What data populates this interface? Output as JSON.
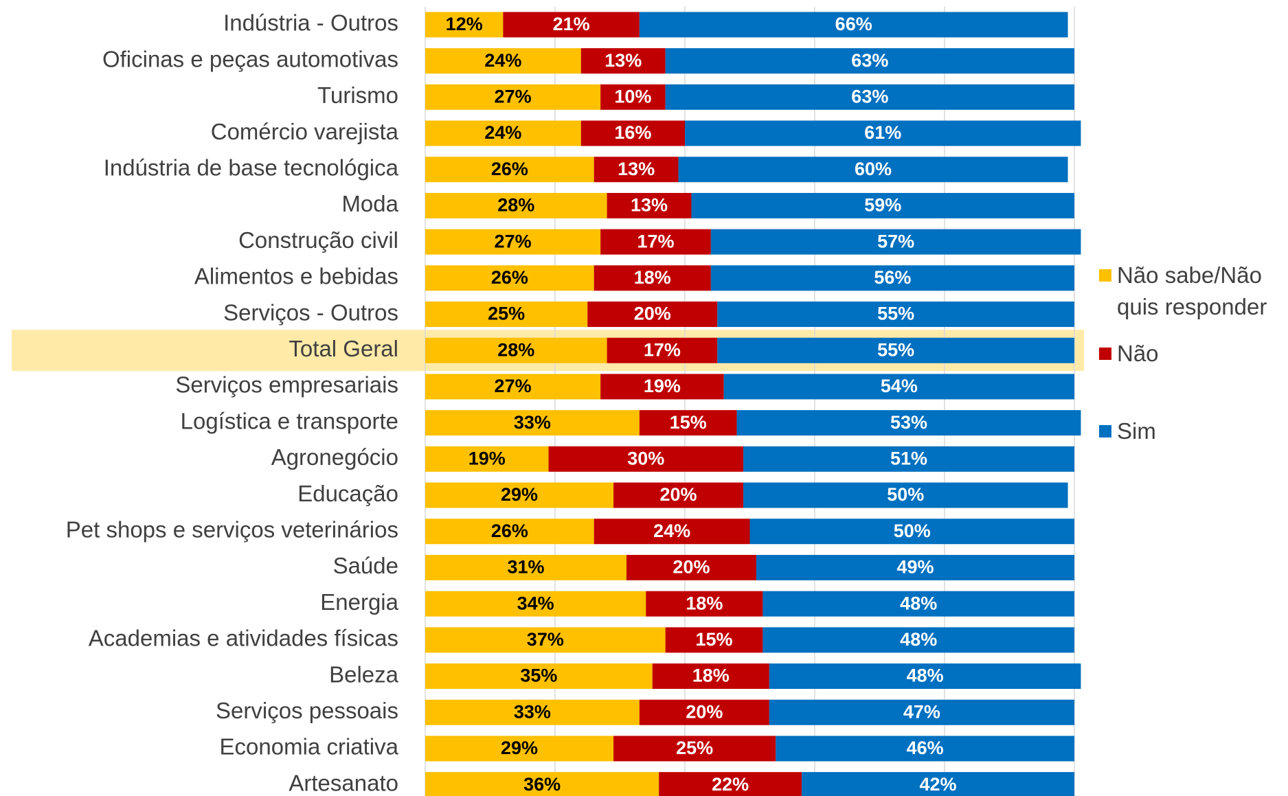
{
  "chart_data": {
    "type": "stacked_barh",
    "categories": [
      "Indústria - Outros",
      "Oficinas e peças automotivas",
      "Turismo",
      "Comércio varejista",
      "Indústria de base tecnológica",
      "Moda",
      "Construção civil",
      "Alimentos e bebidas",
      "Serviços - Outros",
      "Total Geral",
      "Serviços empresariais",
      "Logística e transporte",
      "Agronegócio",
      "Educação",
      "Pet shops e serviços veterinários",
      "Saúde",
      "Energia",
      "Academias e atividades físicas",
      "Beleza",
      "Serviços pessoais",
      "Economia criativa",
      "Artesanato"
    ],
    "series": [
      {
        "name": "Não sabe/Não quis responder",
        "color": "#ffc000",
        "label_color": "#000000",
        "values": [
          12,
          24,
          27,
          24,
          26,
          28,
          27,
          26,
          25,
          28,
          27,
          33,
          19,
          29,
          26,
          31,
          34,
          37,
          35,
          33,
          29,
          36
        ],
        "value_labels": [
          "12%",
          "24%",
          "27%",
          "24%",
          "26%",
          "28%",
          "27%",
          "26%",
          "25%",
          "28%",
          "27%",
          "33%",
          "19%",
          "29%",
          "26%",
          "31%",
          "34%",
          "37%",
          "35%",
          "33%",
          "29%",
          "36%"
        ]
      },
      {
        "name": "Não",
        "color": "#c00000",
        "label_color": "#ffffff",
        "values": [
          21,
          13,
          10,
          16,
          13,
          13,
          17,
          18,
          20,
          17,
          19,
          15,
          30,
          20,
          24,
          20,
          18,
          15,
          18,
          20,
          25,
          22
        ],
        "value_labels": [
          "21%",
          "13%",
          "10%",
          "16%",
          "13%",
          "13%",
          "17%",
          "18%",
          "20%",
          "17%",
          "19%",
          "15%",
          "30%",
          "20%",
          "24%",
          "20%",
          "18%",
          "15%",
          "18%",
          "20%",
          "25%",
          "22%"
        ]
      },
      {
        "name": "Sim",
        "color": "#0070c0",
        "label_color": "#ffffff",
        "values": [
          66,
          63,
          63,
          61,
          60,
          59,
          57,
          56,
          55,
          55,
          54,
          53,
          51,
          50,
          50,
          49,
          48,
          48,
          48,
          47,
          46,
          42
        ],
        "value_labels": [
          "66%",
          "63%",
          "63%",
          "61%",
          "60%",
          "59%",
          "57%",
          "56%",
          "55%",
          "55%",
          "54%",
          "53%",
          "51%",
          "50%",
          "50%",
          "49%",
          "48%",
          "48%",
          "48%",
          "47%",
          "46%",
          "42%"
        ]
      }
    ],
    "xlim": [
      0,
      100
    ],
    "xticks": [
      0,
      20,
      40,
      60,
      80,
      100
    ],
    "grid": true,
    "highlight": "Total Geral",
    "highlight_color": "#ffe699",
    "legend": "right"
  }
}
